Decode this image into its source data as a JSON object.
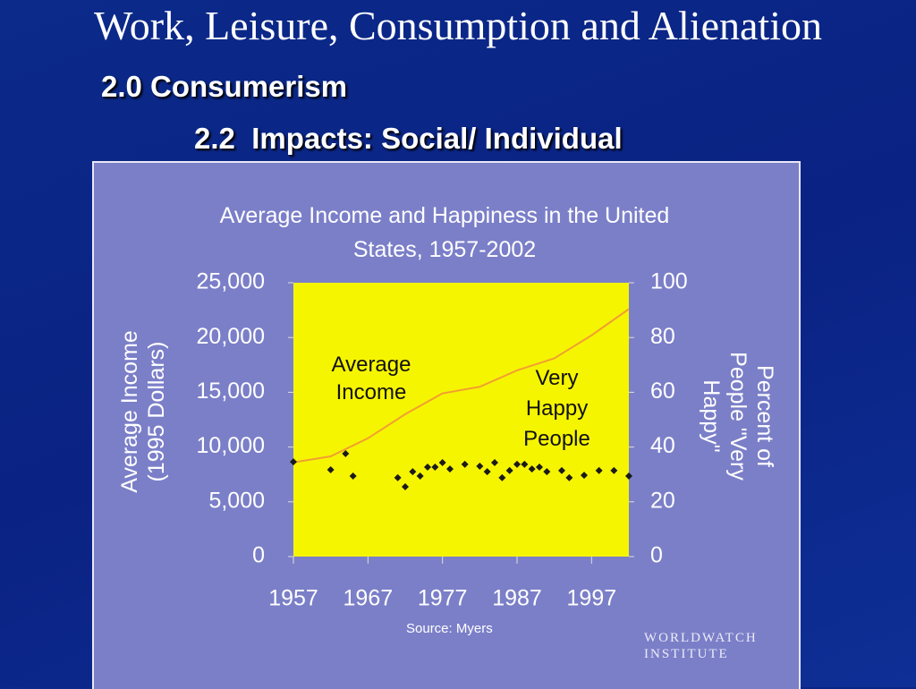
{
  "slide": {
    "title": "Work, Leisure, Consumption and Alienation",
    "heading": "2.0 Consumerism",
    "subheading": "2.2  Impacts: Social/ Individual"
  },
  "chart_data": {
    "type": "line",
    "title": "Average Income and Happiness in the United States, 1957-2002",
    "ylabel": "Average Income (1995 Dollars)",
    "y2label": "Percent of People \"Very Happy\"",
    "source": "Source: Myers",
    "logo": "WORLDWATCH INSTITUTE",
    "xlim": [
      1957,
      2002
    ],
    "xticks": [
      1957,
      1967,
      1977,
      1987,
      1997
    ],
    "ylim": [
      0,
      25000
    ],
    "yticks": [
      0,
      {
        "value": 5000,
        "label": "5,000"
      },
      {
        "value": 10000,
        "label": "10,000"
      },
      {
        "value": 15000,
        "label": "15,000"
      },
      {
        "value": 20000,
        "label": "20,000"
      },
      {
        "value": 25000,
        "label": "25,000"
      }
    ],
    "y2lim": [
      0,
      100
    ],
    "y2ticks": [
      0,
      20,
      40,
      60,
      80,
      100
    ],
    "series": [
      {
        "name": "Average Income",
        "color": "#f0a030",
        "x": [
          1957,
          1962,
          1967,
          1972,
          1977,
          1982,
          1987,
          1992,
          1997,
          2002
        ],
        "values": [
          8600,
          9150,
          10800,
          13000,
          14900,
          15500,
          17000,
          18100,
          20200,
          22600
        ]
      },
      {
        "name": "Very Happy People",
        "color": "#1a1a1a",
        "axis": "y2",
        "style": "points",
        "x": [
          1957,
          1962,
          1964,
          1965,
          1971,
          1972,
          1973,
          1974,
          1975,
          1976,
          1977,
          1978,
          1980,
          1982,
          1983,
          1984,
          1985,
          1986,
          1987,
          1988,
          1989,
          1990,
          1991,
          1993,
          1994,
          1996,
          1998,
          2000,
          2002
        ],
        "values": [
          34.6,
          31.7,
          37.6,
          29.4,
          28.8,
          25.5,
          31,
          29.4,
          32.7,
          32.7,
          34.3,
          32,
          33.7,
          33,
          31,
          34.3,
          28.8,
          31.4,
          33.7,
          33.7,
          32,
          32.7,
          31,
          31.4,
          28.8,
          29.7,
          31.4,
          31.4,
          29.4
        ]
      }
    ]
  }
}
